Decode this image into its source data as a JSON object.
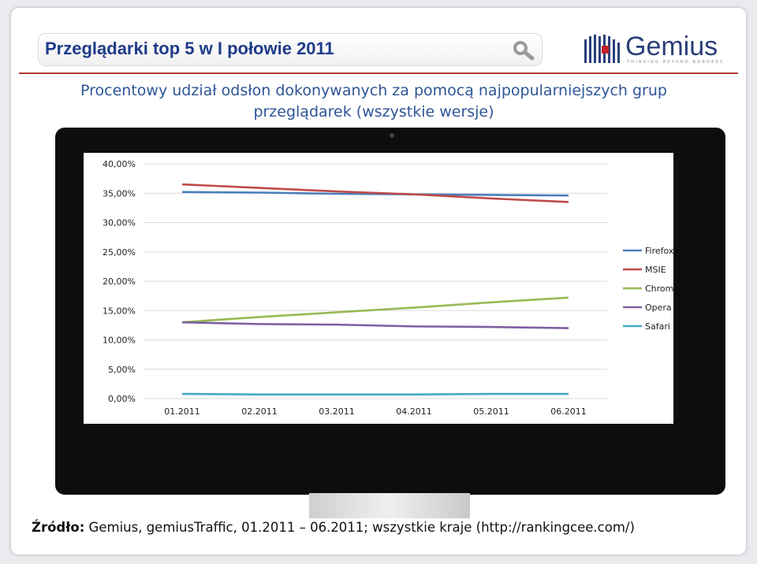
{
  "header": {
    "title": "Przeglądarki top 5 w I połowie 2011",
    "logo_text": "Gemius",
    "logo_tagline": "THINKING BEYOND BORDERS"
  },
  "subtitle_line1": "Procentowy udział odsłon dokonywanych za pomocą najpopularniejszych grup",
  "subtitle_line2": "przeglądarek (wszystkie wersje)",
  "source": {
    "label": "Źródło:",
    "text": " Gemius, gemiusTraffic, 01.2011 – 06.2011; wszystkie kraje (http://rankingcee.com/)"
  },
  "colors": {
    "title": "#1f3b8a",
    "subtitle": "#2f5597",
    "rule": "#b53a3a"
  },
  "chart_data": {
    "type": "line",
    "categories": [
      "01.2011",
      "02.2011",
      "03.2011",
      "04.2011",
      "05.2011",
      "06.2011"
    ],
    "y_tick_labels": [
      "0,00%",
      "5,00%",
      "10,00%",
      "15,00%",
      "20,00%",
      "25,00%",
      "30,00%",
      "35,00%",
      "40,00%"
    ],
    "ylim": [
      0,
      40
    ],
    "grid": true,
    "legend_position": "right",
    "series": [
      {
        "name": "Firefox",
        "color": "#4a7ebb",
        "values": [
          35.2,
          35.1,
          34.9,
          34.8,
          34.7,
          34.6
        ]
      },
      {
        "name": "MSIE",
        "color": "#be4b48",
        "values": [
          36.5,
          35.9,
          35.3,
          34.8,
          34.1,
          33.5
        ]
      },
      {
        "name": "Chrome",
        "color": "#98b954",
        "values": [
          13.0,
          13.9,
          14.7,
          15.5,
          16.4,
          17.2
        ]
      },
      {
        "name": "Opera",
        "color": "#7d60a0",
        "values": [
          13.0,
          12.7,
          12.6,
          12.3,
          12.2,
          12.0
        ]
      },
      {
        "name": "Safari",
        "color": "#46aac5",
        "values": [
          0.8,
          0.7,
          0.7,
          0.7,
          0.8,
          0.8
        ]
      }
    ]
  }
}
